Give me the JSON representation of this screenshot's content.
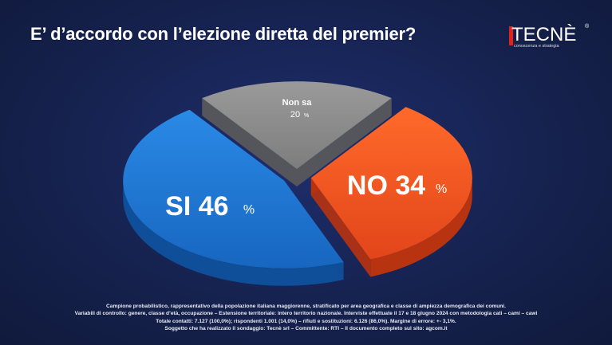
{
  "header": {
    "title": "E’ d’accordo con l’elezione diretta del premier?"
  },
  "logo": {
    "wordmark": "TECNÈ",
    "registered": "®",
    "tagline": "conoscenza e strategia"
  },
  "chart_data": {
    "type": "pie",
    "title": "E’ d’accordo con l’elezione diretta del premier?",
    "slices": [
      {
        "label": "SI",
        "value": 46,
        "unit": "%",
        "color": "#1877d0"
      },
      {
        "label": "NO",
        "value": 34,
        "unit": "%",
        "color": "#f0501c"
      },
      {
        "label": "Non sa",
        "value": 20,
        "unit": "%",
        "color": "#8c8c8c"
      }
    ],
    "style": "3d-exploded"
  },
  "footnote": {
    "lines": [
      "Campione probabilistico, rappresentativo della popolazione italiana maggiorenne, stratificato per area geografica e classe di ampiezza demografica dei comuni.",
      "Variabili di controllo: genere, classe d’età, occupazione – Estensione territoriale: intero territorio nazionale. Interviste effettuate il 17 e 18 giugno 2024 con metodologia cati – cami – cawi",
      "Totale contatti: 7.127 (100,0%); rispondenti 1.001 (14,0%) – rifiuti e sostituzioni: 6.126 (86,0%). Margine di errore: +- 3,1%.",
      "Soggetto che ha realizzato il sondaggio: Tecnè srl – Committente: RTI – Il documento completo sul sito: agcom.it"
    ]
  }
}
